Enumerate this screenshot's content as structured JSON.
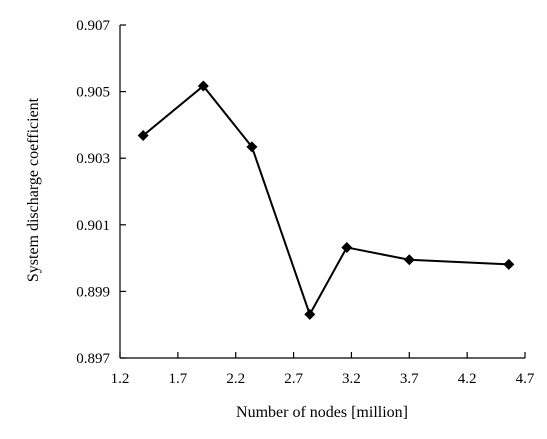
{
  "chart_data": {
    "type": "line",
    "title": "",
    "xlabel": "Number of nodes [million]",
    "ylabel": "System discharge coefficient",
    "xlim": [
      1.2,
      4.7
    ],
    "ylim": [
      0.897,
      0.907
    ],
    "xticks": [
      1.2,
      1.7,
      2.2,
      2.7,
      3.2,
      3.7,
      4.2,
      4.7
    ],
    "xtick_labels": [
      "1.2",
      "1.7",
      "2.2",
      "2.7",
      "3.2",
      "3.7",
      "4.2",
      "4.7"
    ],
    "yticks": [
      0.897,
      0.899,
      0.901,
      0.903,
      0.905,
      0.907
    ],
    "ytick_labels": [
      "0.897",
      "0.899",
      "0.901",
      "0.903",
      "0.905",
      "0.907"
    ],
    "grid": false,
    "legend": "none",
    "marker": "diamond",
    "line_color": "#000000",
    "x": [
      1.4,
      1.92,
      2.34,
      2.84,
      3.16,
      3.7,
      4.56
    ],
    "y": [
      0.90368,
      0.90517,
      0.90334,
      0.89831,
      0.90032,
      0.89995,
      0.89981
    ]
  }
}
